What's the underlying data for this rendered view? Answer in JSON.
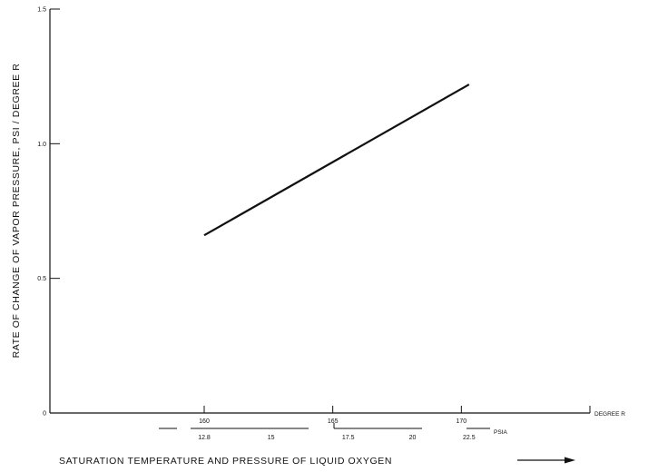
{
  "chart_data": {
    "type": "line",
    "title": "",
    "xlabel": "SATURATION TEMPERATURE AND PRESSURE OF LIQUID OXYGEN",
    "ylabel": "RATE OF CHANGE OF VAPOR PRESSURE, PSI / DEGREE R",
    "x_unit": "DEGREE R",
    "secondary_x_unit": "PSIA",
    "xlim": [
      154,
      175
    ],
    "ylim": [
      0,
      1.5
    ],
    "x_ticks": [
      {
        "value": 160,
        "label": "160"
      },
      {
        "value": 165,
        "label": "165"
      },
      {
        "value": 170,
        "label": "170"
      }
    ],
    "y_ticks": [
      {
        "value": 0,
        "label": "0"
      },
      {
        "value": 0.5,
        "label": "0.5"
      },
      {
        "value": 1.0,
        "label": "1.0"
      },
      {
        "value": 1.5,
        "label": "1.5"
      }
    ],
    "secondary_x_ticks": [
      {
        "value": 160,
        "label": "12.8"
      },
      {
        "value": 162.6,
        "label": "15"
      },
      {
        "value": 165.6,
        "label": "17.5"
      },
      {
        "value": 168.1,
        "label": "20"
      },
      {
        "value": 170.3,
        "label": "22.5"
      }
    ],
    "grid": false,
    "series": [
      {
        "x": [
          160,
          170.3
        ],
        "y": [
          0.66,
          1.22
        ]
      }
    ]
  }
}
